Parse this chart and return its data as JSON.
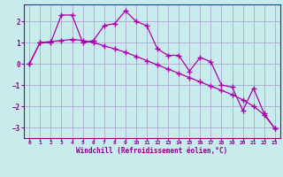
{
  "xlabel": "Windchill (Refroidissement éolien,°C)",
  "bg_color": "#c8ecec",
  "grid_color": "#aaaacc",
  "line_color": "#aa00aa",
  "x_line1": [
    0,
    1,
    2,
    3,
    4,
    5,
    6,
    7,
    8,
    9,
    10,
    11,
    12,
    13,
    14,
    15,
    16,
    17,
    18,
    19,
    20,
    21,
    22,
    23
  ],
  "y_line1": [
    0.0,
    1.0,
    1.0,
    2.3,
    2.3,
    1.0,
    1.1,
    1.8,
    1.9,
    2.5,
    2.0,
    1.8,
    0.7,
    0.4,
    0.4,
    -0.35,
    0.3,
    0.1,
    -1.0,
    -1.1,
    -2.2,
    -1.15,
    -2.35,
    -3.05
  ],
  "x_line2": [
    0,
    1,
    2,
    3,
    4,
    5,
    6,
    7,
    8,
    9,
    10,
    11,
    12,
    13,
    14,
    15,
    16,
    17,
    18,
    19,
    20,
    21,
    22,
    23
  ],
  "y_line2": [
    0.0,
    1.0,
    1.05,
    1.1,
    1.15,
    1.1,
    1.0,
    0.85,
    0.7,
    0.55,
    0.35,
    0.15,
    -0.05,
    -0.25,
    -0.45,
    -0.65,
    -0.85,
    -1.05,
    -1.25,
    -1.45,
    -1.7,
    -2.0,
    -2.4,
    -3.05
  ],
  "ylim": [
    -3.5,
    2.8
  ],
  "yticks": [
    -3,
    -2,
    -1,
    0,
    1,
    2
  ],
  "xticks": [
    0,
    1,
    2,
    3,
    4,
    5,
    6,
    7,
    8,
    9,
    10,
    11,
    12,
    13,
    14,
    15,
    16,
    17,
    18,
    19,
    20,
    21,
    22,
    23
  ]
}
